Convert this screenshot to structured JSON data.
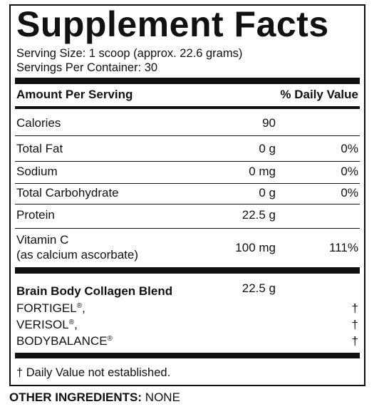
{
  "panel": {
    "title": "Supplement Facts",
    "serving_size": "Serving Size: 1 scoop (approx. 22.6 grams)",
    "servings_per_container": "Servings Per Container: 30",
    "header": {
      "amount": "Amount Per Serving",
      "daily_value": "% Daily Value"
    },
    "rows": [
      {
        "label": "Calories",
        "amount": "90",
        "dv": ""
      },
      {
        "label": "Total Fat",
        "amount": "0 g",
        "dv": "0%"
      },
      {
        "label": "Sodium",
        "amount": "0 mg",
        "dv": "0%"
      },
      {
        "label": "Total Carbohydrate",
        "amount": "0 g",
        "dv": "0%"
      },
      {
        "label": "Protein",
        "amount": "22.5 g",
        "dv": ""
      },
      {
        "label": "Vitamin C",
        "label2": "(as calcium ascorbate)",
        "amount": "100 mg",
        "dv": "111%"
      }
    ],
    "blend": {
      "name": "Brain Body Collagen Blend",
      "amount": "22.5 g",
      "ingredients": [
        {
          "name": "FORTIGEL",
          "mark": "®",
          "suffix": ",",
          "dv": "†"
        },
        {
          "name": "VERISOL",
          "mark": "®",
          "suffix": ",",
          "dv": "†"
        },
        {
          "name": "BODYBALANCE",
          "mark": "®",
          "suffix": "",
          "dv": "†"
        }
      ]
    },
    "footnote": "† Daily Value not established."
  },
  "other_ingredients": {
    "label": "OTHER INGREDIENTS:",
    "value": " NONE"
  }
}
